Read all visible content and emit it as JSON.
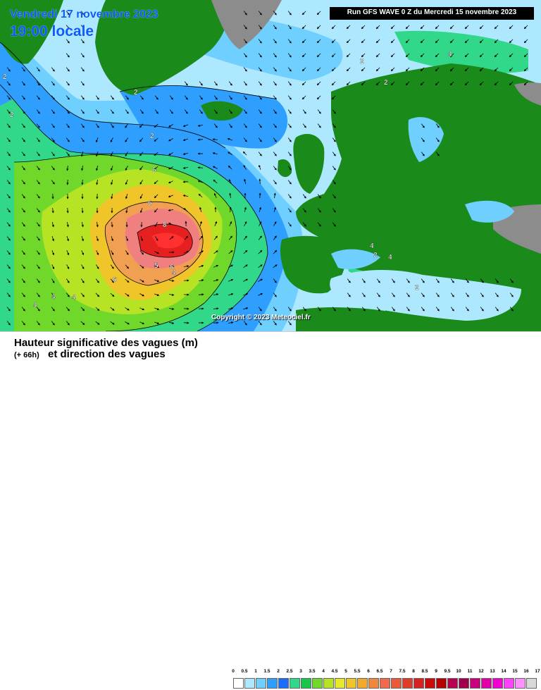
{
  "header": {
    "date": "Vendredi 17 novembre 2023",
    "time": "19:00 locale",
    "run": "Run GFS WAVE 0 Z du Mercredi 15 novembre 2023"
  },
  "copyright": "Copyright © 2023 Meteociel.fr",
  "legend": {
    "line1": "Hauteur significative des vagues (m)",
    "hours": "(+ 66h)",
    "line2": "et direction des vagues",
    "ticks": [
      "0",
      "0.5",
      "1",
      "1.5",
      "2",
      "2.5",
      "3",
      "3.5",
      "4",
      "4.5",
      "5",
      "5.5",
      "6",
      "6.5",
      "7",
      "7.5",
      "8",
      "8.5",
      "9",
      "9.5",
      "10",
      "11",
      "12",
      "13",
      "14",
      "15",
      "16",
      "17"
    ],
    "colors": [
      "#ffffff",
      "#aee8ff",
      "#6fcfff",
      "#2f9fff",
      "#1a6cff",
      "#31d88a",
      "#19c54b",
      "#6fd82a",
      "#b6e324",
      "#e6e82a",
      "#f0c52a",
      "#f3a82e",
      "#f0873c",
      "#f06b4e",
      "#e85a3a",
      "#e03c2a",
      "#d62222",
      "#c80c0c",
      "#b40000",
      "#b80050",
      "#a0004c",
      "#c8007e",
      "#e000a8",
      "#f000d0",
      "#ff40ff",
      "#ff90ff",
      "#d8d8d8"
    ]
  },
  "map": {
    "colors": {
      "land": "#1a8a1a",
      "ice_land": "#8c8c8c",
      "sea_calm": "#aee8ff",
      "sea_low": "#6fcfff",
      "sea_mid": "#2f9fff",
      "sea_2m": "#1a6cff",
      "sea_3m": "#31d88a",
      "sea_4m": "#6fd82a",
      "sea_5m": "#b6e324",
      "sea_6m": "#f0a050",
      "sea_7m": "#f08080",
      "sea_8m": "#e62020",
      "sea_9m": "#ff3030",
      "contour": "#000000"
    },
    "contour_labels": [
      {
        "text": "2"
      },
      {
        "text": "2"
      },
      {
        "text": "2"
      },
      {
        "text": "2"
      },
      {
        "text": "2"
      },
      {
        "text": "2"
      },
      {
        "text": "6"
      },
      {
        "text": "6"
      },
      {
        "text": "8"
      },
      {
        "text": "5"
      },
      {
        "text": "6"
      },
      {
        "text": "6"
      },
      {
        "text": "4"
      },
      {
        "text": "4"
      },
      {
        "text": "4"
      },
      {
        "text": "4"
      },
      {
        "text": "4"
      },
      {
        "text": "4"
      },
      {
        "text": "2"
      },
      {
        "text": "2"
      },
      {
        "text": "4"
      }
    ]
  }
}
